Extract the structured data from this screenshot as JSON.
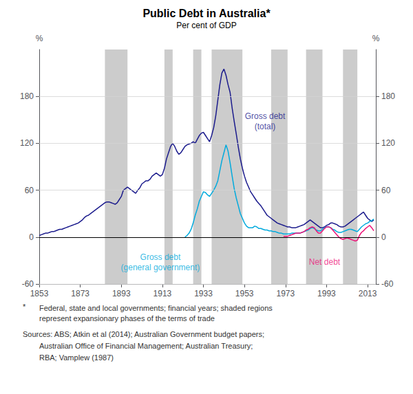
{
  "chart_data": {
    "type": "line",
    "title": "Public Debt in Australia*",
    "subtitle": "Per cent of GDP",
    "ylabel": "%",
    "y2label": "%",
    "xlim": [
      1853,
      2017
    ],
    "xticks": [
      1853,
      1873,
      1893,
      1913,
      1933,
      1953,
      1973,
      1993,
      2013
    ],
    "ylim": [
      -60,
      240
    ],
    "yticks": [
      -60,
      0,
      60,
      120,
      180
    ],
    "y2lim": [
      -60,
      240
    ],
    "y2ticks": [
      -60,
      0,
      60,
      120,
      180
    ],
    "grid": true,
    "hlines": [
      0
    ],
    "shaded_regions": [
      [
        1885,
        1896
      ],
      [
        1914,
        1918
      ],
      [
        1928,
        1932
      ],
      [
        1937,
        1952
      ],
      [
        1966,
        1974
      ],
      [
        1983,
        1991
      ],
      [
        2001,
        2008
      ]
    ],
    "shade_color": "#cccccc",
    "series": [
      {
        "color": "#1a1a8c",
        "x": [
          1853,
          1854,
          1855,
          1856,
          1857,
          1858,
          1859,
          1860,
          1861,
          1862,
          1863,
          1864,
          1865,
          1866,
          1867,
          1868,
          1869,
          1870,
          1871,
          1872,
          1873,
          1874,
          1875,
          1876,
          1877,
          1878,
          1879,
          1880,
          1881,
          1882,
          1883,
          1884,
          1885,
          1886,
          1887,
          1888,
          1889,
          1890,
          1891,
          1892,
          1893,
          1894,
          1895,
          1896,
          1897,
          1898,
          1899,
          1900,
          1901,
          1902,
          1903,
          1904,
          1905,
          1906,
          1907,
          1908,
          1909,
          1910,
          1911,
          1912,
          1913,
          1914,
          1915,
          1916,
          1917,
          1918,
          1919,
          1920,
          1921,
          1922,
          1923,
          1924,
          1925,
          1926,
          1927,
          1928,
          1929,
          1930,
          1931,
          1932,
          1933,
          1934,
          1935,
          1936,
          1937,
          1938,
          1939,
          1940,
          1941,
          1942,
          1943,
          1944,
          1945,
          1946,
          1947,
          1948,
          1949,
          1950,
          1951,
          1952,
          1953,
          1954,
          1955,
          1956,
          1957,
          1958,
          1959,
          1960,
          1961,
          1962,
          1963,
          1964,
          1965,
          1966,
          1967,
          1968,
          1969,
          1970,
          1971,
          1972,
          1973,
          1974,
          1975,
          1976,
          1977,
          1978,
          1979,
          1980,
          1981,
          1982,
          1983,
          1984,
          1985,
          1986,
          1987,
          1988,
          1989,
          1990,
          1991,
          1992,
          1993,
          1994,
          1995,
          1996,
          1997,
          1998,
          1999,
          2000,
          2001,
          2002,
          2003,
          2004,
          2005,
          2006,
          2007,
          2008,
          2009,
          2010,
          2011,
          2012,
          2013,
          2014,
          2015,
          2016
        ],
        "values": [
          2,
          3,
          4,
          5,
          5,
          6,
          7,
          7,
          8,
          9,
          10,
          10,
          11,
          12,
          13,
          14,
          15,
          16,
          17,
          18,
          20,
          22,
          25,
          27,
          28,
          30,
          32,
          34,
          36,
          38,
          40,
          42,
          44,
          45,
          45,
          44,
          43,
          42,
          44,
          48,
          52,
          60,
          62,
          64,
          62,
          60,
          58,
          56,
          60,
          63,
          68,
          70,
          72,
          72,
          74,
          78,
          80,
          82,
          80,
          78,
          80,
          88,
          100,
          108,
          116,
          120,
          116,
          110,
          106,
          108,
          112,
          116,
          118,
          119,
          120,
          122,
          120,
          125,
          130,
          133,
          134,
          130,
          126,
          122,
          130,
          140,
          155,
          175,
          195,
          210,
          215,
          207,
          195,
          185,
          165,
          148,
          132,
          115,
          100,
          88,
          78,
          70,
          64,
          58,
          54,
          50,
          46,
          43,
          40,
          36,
          32,
          28,
          26,
          24,
          22,
          20,
          18,
          17,
          16,
          15,
          14,
          13,
          13,
          12,
          12,
          12,
          13,
          14,
          15,
          16,
          18,
          20,
          22,
          20,
          18,
          16,
          14,
          12,
          12,
          13,
          15,
          16,
          18,
          18,
          17,
          16,
          14,
          13,
          13,
          14,
          16,
          18,
          20,
          22,
          24,
          26,
          28,
          30,
          32,
          28,
          24,
          22,
          20,
          22
        ]
      },
      {
        "color": "#00aadd",
        "x": [
          1924,
          1925,
          1926,
          1927,
          1928,
          1929,
          1930,
          1931,
          1932,
          1933,
          1934,
          1935,
          1936,
          1937,
          1938,
          1939,
          1940,
          1941,
          1942,
          1943,
          1944,
          1945,
          1946,
          1947,
          1948,
          1949,
          1950,
          1951,
          1952,
          1953,
          1954,
          1955,
          1956,
          1957,
          1958,
          1959,
          1960,
          1961,
          1962,
          1963,
          1964,
          1965,
          1966,
          1967,
          1968,
          1969,
          1970,
          1971,
          1972,
          1973,
          1974,
          1975,
          1976,
          1977,
          1978,
          1979,
          1980,
          1981,
          1982,
          1983,
          1984,
          1985,
          1986,
          1987,
          1988,
          1989,
          1990,
          1991,
          1992,
          1993,
          1994,
          1995,
          1996,
          1997,
          1998,
          1999,
          2000,
          2001,
          2002,
          2003,
          2004,
          2005,
          2006,
          2007,
          2008,
          2009,
          2010,
          2011,
          2012,
          2013,
          2014,
          2015,
          2016
        ],
        "values": [
          0,
          2,
          5,
          10,
          18,
          28,
          36,
          46,
          52,
          58,
          57,
          54,
          52,
          56,
          60,
          65,
          72,
          85,
          98,
          108,
          118,
          110,
          95,
          78,
          62,
          50,
          40,
          30,
          24,
          18,
          14,
          12,
          12,
          12,
          14,
          13,
          11,
          11,
          10,
          9,
          9,
          8,
          8,
          7,
          7,
          6,
          5,
          5,
          4,
          4,
          4,
          4,
          5,
          5,
          5,
          5,
          5,
          6,
          7,
          8,
          9,
          11,
          12,
          11,
          9,
          8,
          8,
          10,
          12,
          13,
          13,
          12,
          10,
          9,
          7,
          6,
          6,
          7,
          8,
          9,
          10,
          10,
          9,
          8,
          7,
          10,
          13,
          15,
          17,
          18,
          20,
          21,
          23
        ]
      },
      {
        "color": "#ee1177",
        "x": [
          1972,
          1973,
          1974,
          1975,
          1976,
          1977,
          1978,
          1979,
          1980,
          1981,
          1982,
          1983,
          1984,
          1985,
          1986,
          1987,
          1988,
          1989,
          1990,
          1991,
          1992,
          1993,
          1994,
          1995,
          1996,
          1997,
          1998,
          1999,
          2000,
          2001,
          2002,
          2003,
          2004,
          2005,
          2006,
          2007,
          2008,
          2009,
          2010,
          2011,
          2012,
          2013,
          2014,
          2015,
          2016
        ],
        "values": [
          1,
          1,
          1,
          2,
          3,
          4,
          5,
          5,
          5,
          6,
          7,
          9,
          10,
          12,
          13,
          12,
          8,
          5,
          5,
          8,
          11,
          13,
          13,
          12,
          9,
          6,
          3,
          0,
          -2,
          -3,
          -2,
          -1,
          -2,
          -3,
          -4,
          -5,
          -4,
          2,
          6,
          8,
          11,
          13,
          15,
          12,
          8
        ]
      }
    ],
    "annotations": [
      {
        "text": "Gross debt\n(total)",
        "x": 1963,
        "y": 148,
        "color": "#1a1a8c"
      },
      {
        "text": "Gross debt\n(general government)",
        "x": 1912,
        "y": -32,
        "color": "#00aadd"
      },
      {
        "text": "Net debt",
        "x": 1992,
        "y": -32,
        "color": "#ee1177"
      }
    ],
    "footnote_marker": "*",
    "footnote": "Federal, state and local governments; financial years; shaded regions\nrepresent expansionary phases of the terms of trade",
    "sources": [
      "Sources: ABS; Atkin et al (2014); Australian Government budget papers;",
      "Australian Office of Financial Management; Australian Treasury;",
      "RBA; Vamplew (1987)"
    ]
  }
}
